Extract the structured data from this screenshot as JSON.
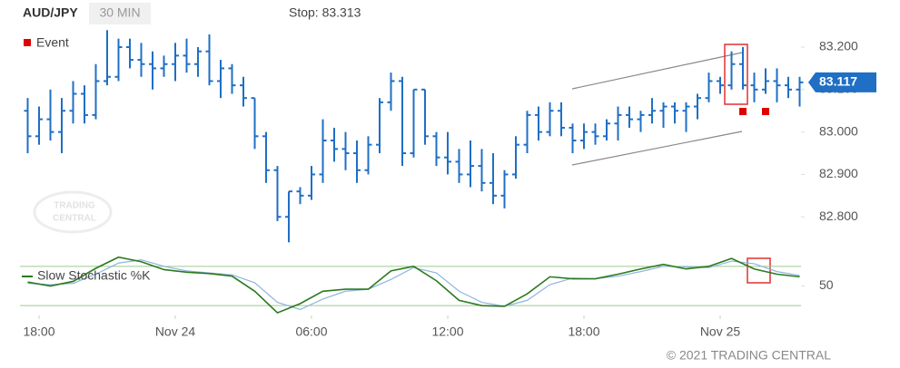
{
  "chart_data": {
    "type": "ohlc",
    "symbol": "AUD/JPY",
    "interval": "30 MIN",
    "stop_label": "Stop: 83.313",
    "event_legend": "Event",
    "watermark": [
      "TRADING",
      "CENTRAL"
    ],
    "footer": "© 2021 TRADING CENTRAL",
    "color": "#1f6fc5",
    "xlim": [
      -0.84,
      33.56
    ],
    "xticks": [
      {
        "value": 0,
        "label": "18:00"
      },
      {
        "value": 6,
        "label": "Nov 24"
      },
      {
        "value": 12,
        "label": "06:00"
      },
      {
        "value": 18,
        "label": "12:00"
      },
      {
        "value": 24,
        "label": "18:00"
      },
      {
        "value": 30,
        "label": "Nov 25"
      }
    ],
    "ylim": [
      82.745,
      83.247
    ],
    "yticks": [
      {
        "value": 82.8,
        "label": "82.800"
      },
      {
        "value": 82.9,
        "label": "82.900"
      },
      {
        "value": 83.0,
        "label": "83.000"
      },
      {
        "value": 83.1,
        "label": "83.100"
      },
      {
        "value": 83.2,
        "label": "83.200"
      }
    ],
    "last_price": 83.117,
    "events": {
      "color": "#e00000",
      "x": [
        31,
        32
      ]
    },
    "x": [
      -0.5,
      0,
      0.5,
      1,
      1.5,
      2,
      2.5,
      3,
      3.5,
      4,
      4.5,
      5,
      5.5,
      6,
      6.5,
      7,
      7.5,
      8,
      8.5,
      9,
      9.5,
      10,
      10.5,
      11,
      11.5,
      12,
      12.5,
      13,
      13.5,
      14,
      14.5,
      15,
      15.5,
      16,
      16.5,
      17,
      17.5,
      18,
      18.5,
      19,
      19.5,
      20,
      20.5,
      21,
      21.5,
      22,
      22.5,
      23,
      23.5,
      24,
      24.5,
      25,
      25.5,
      26,
      26.5,
      27,
      27.5,
      28,
      28.5,
      29,
      29.5,
      30,
      30.5,
      31,
      31.5,
      32,
      32.5,
      33,
      33.5
    ],
    "ohlc": [
      [
        83.05,
        83.08,
        82.95,
        82.99
      ],
      [
        82.99,
        83.06,
        82.97,
        83.03
      ],
      [
        83.03,
        83.1,
        82.98,
        83.0
      ],
      [
        83.0,
        83.08,
        82.95,
        83.05
      ],
      [
        83.05,
        83.12,
        83.02,
        83.09
      ],
      [
        83.09,
        83.11,
        83.02,
        83.04
      ],
      [
        83.04,
        83.16,
        83.03,
        83.12
      ],
      [
        83.12,
        83.24,
        83.11,
        83.13
      ],
      [
        83.13,
        83.22,
        83.12,
        83.2
      ],
      [
        83.2,
        83.22,
        83.15,
        83.17
      ],
      [
        83.17,
        83.21,
        83.13,
        83.16
      ],
      [
        83.16,
        83.19,
        83.1,
        83.15
      ],
      [
        83.15,
        83.18,
        83.13,
        83.16
      ],
      [
        83.16,
        83.21,
        83.12,
        83.18
      ],
      [
        83.18,
        83.22,
        83.14,
        83.16
      ],
      [
        83.16,
        83.2,
        83.13,
        83.19
      ],
      [
        83.19,
        83.23,
        83.11,
        83.12
      ],
      [
        83.12,
        83.17,
        83.08,
        83.15
      ],
      [
        83.15,
        83.16,
        83.09,
        83.11
      ],
      [
        83.11,
        83.13,
        83.06,
        83.08
      ],
      [
        83.08,
        83.08,
        82.96,
        82.99
      ],
      [
        82.99,
        83.0,
        82.88,
        82.91
      ],
      [
        82.91,
        82.92,
        82.79,
        82.8
      ],
      [
        82.8,
        82.86,
        82.74,
        82.86
      ],
      [
        82.86,
        82.87,
        82.83,
        82.85
      ],
      [
        82.85,
        82.92,
        82.84,
        82.9
      ],
      [
        82.9,
        83.03,
        82.88,
        82.98
      ],
      [
        82.98,
        83.01,
        82.93,
        82.96
      ],
      [
        82.96,
        83.0,
        82.91,
        82.95
      ],
      [
        82.95,
        82.98,
        82.88,
        82.91
      ],
      [
        82.91,
        82.99,
        82.9,
        82.97
      ],
      [
        82.97,
        83.08,
        82.95,
        83.07
      ],
      [
        83.07,
        83.14,
        83.05,
        83.12
      ],
      [
        83.12,
        83.13,
        82.92,
        82.95
      ],
      [
        82.95,
        83.1,
        82.94,
        83.1
      ],
      [
        83.1,
        83.1,
        82.97,
        82.99
      ],
      [
        82.99,
        83.0,
        82.92,
        82.94
      ],
      [
        82.94,
        83.0,
        82.9,
        82.93
      ],
      [
        82.93,
        82.96,
        82.88,
        82.9
      ],
      [
        82.9,
        82.98,
        82.87,
        82.92
      ],
      [
        82.92,
        82.96,
        82.86,
        82.88
      ],
      [
        82.88,
        82.95,
        82.83,
        82.85
      ],
      [
        82.85,
        82.91,
        82.82,
        82.9
      ],
      [
        82.9,
        82.99,
        82.89,
        82.97
      ],
      [
        82.97,
        83.05,
        82.95,
        83.04
      ],
      [
        83.04,
        83.06,
        82.98,
        83.0
      ],
      [
        83.0,
        83.07,
        82.99,
        83.05
      ],
      [
        83.05,
        83.07,
        82.99,
        83.01
      ],
      [
        83.01,
        83.02,
        82.95,
        82.98
      ],
      [
        82.98,
        83.02,
        82.96,
        83.0
      ],
      [
        83.0,
        83.02,
        82.97,
        82.99
      ],
      [
        82.99,
        83.03,
        82.98,
        83.02
      ],
      [
        83.02,
        83.06,
        82.98,
        83.04
      ],
      [
        83.04,
        83.06,
        83.01,
        83.03
      ],
      [
        83.03,
        83.05,
        83.0,
        83.04
      ],
      [
        83.04,
        83.08,
        83.02,
        83.05
      ],
      [
        83.05,
        83.07,
        83.01,
        83.06
      ],
      [
        83.06,
        83.07,
        83.02,
        83.05
      ],
      [
        83.05,
        83.07,
        83.0,
        83.06
      ],
      [
        83.06,
        83.09,
        83.03,
        83.08
      ],
      [
        83.08,
        83.14,
        83.07,
        83.12
      ],
      [
        83.12,
        83.13,
        83.09,
        83.11
      ],
      [
        83.11,
        83.19,
        83.1,
        83.16
      ],
      [
        83.16,
        83.2,
        83.1,
        83.11
      ],
      [
        83.11,
        83.14,
        83.07,
        83.1
      ],
      [
        83.1,
        83.15,
        83.09,
        83.12
      ],
      [
        83.12,
        83.15,
        83.07,
        83.11
      ],
      [
        83.11,
        83.13,
        83.08,
        83.1
      ],
      [
        83.1,
        83.13,
        83.06,
        83.117
      ]
    ],
    "stochastic": {
      "ylim": [
        5,
        95
      ],
      "yticks": [
        50
      ],
      "levels": [
        20,
        80
      ],
      "level_color": "#9dc98f",
      "x": [
        -0.5,
        0.5,
        1.5,
        2.5,
        3.5,
        4.5,
        5.5,
        6.5,
        7.5,
        8.5,
        9.5,
        10.5,
        11.5,
        12.5,
        13.5,
        14.5,
        15.5,
        16.5,
        17.5,
        18.5,
        19.5,
        20.5,
        21.5,
        22.5,
        23.5,
        24.5,
        25.5,
        26.5,
        27.5,
        28.5,
        29.5,
        30.5,
        31.5,
        32.5,
        33.5
      ],
      "series": [
        {
          "name": "Slow Stochastic %K",
          "color": "#2a7a1e",
          "values": [
            56,
            50,
            57,
            77,
            94,
            87,
            75,
            71,
            69,
            65,
            42,
            9,
            23,
            42,
            45,
            45,
            73,
            80,
            58,
            28,
            20,
            19,
            38,
            64,
            61,
            61,
            68,
            76,
            83,
            76,
            80,
            92,
            76,
            68,
            64
          ]
        },
        {
          "color": "#8fb4e0",
          "values": [
            54,
            52,
            54,
            68,
            85,
            90,
            80,
            73,
            70,
            67,
            55,
            25,
            14,
            30,
            42,
            45,
            60,
            78,
            70,
            42,
            25,
            19,
            28,
            52,
            62,
            61,
            65,
            72,
            80,
            79,
            78,
            88,
            84,
            72,
            66
          ]
        }
      ]
    }
  }
}
